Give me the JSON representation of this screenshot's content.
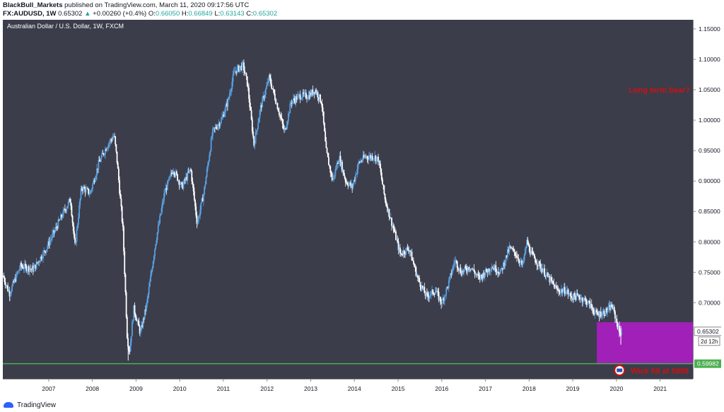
{
  "header": {
    "author": "BlackBull_Markets",
    "published": " published on TradingView.com, March 11, 2020 09:17:56 UTC",
    "symbol": "FX:AUDUSD, 1W",
    "last": "0.65302",
    "change": "+0.00260 (+0.4%)",
    "o_label": "O:",
    "o": "0.66050",
    "h_label": "H:",
    "h": "0.66849",
    "l_label": "L:",
    "l": "0.63143",
    "c_label": "C:",
    "c": "0.65302"
  },
  "colors": {
    "background": "#3b3d4b",
    "candle_up": "#5aa0e0",
    "candle_down": "#ffffff",
    "zone": "#a020b8",
    "support_line": "#4caf50",
    "annotation": "#d01010",
    "axis_text": "#131722"
  },
  "footer": {
    "brand": "TradingView"
  },
  "chart_data": {
    "type": "candlestick",
    "title": "Australian Dollar / U.S. Dollar, 1W, FXCM",
    "x_ticks": [
      "2007",
      "2008",
      "2009",
      "2010",
      "2011",
      "2012",
      "2013",
      "2014",
      "2015",
      "2016",
      "2017",
      "2018",
      "2019",
      "2020",
      "2021"
    ],
    "y_ticks": [
      "1.15000",
      "1.10000",
      "1.05000",
      "1.00000",
      "0.95000",
      "0.90000",
      "0.85000",
      "0.80000",
      "0.75000",
      "0.70000"
    ],
    "y_range": [
      0.575,
      1.165
    ],
    "x_range": [
      2006.0,
      2021.8
    ],
    "price_path": [
      [
        2006.0,
        0.745
      ],
      [
        2006.15,
        0.715
      ],
      [
        2006.4,
        0.76
      ],
      [
        2006.7,
        0.755
      ],
      [
        2007.0,
        0.79
      ],
      [
        2007.2,
        0.82
      ],
      [
        2007.4,
        0.85
      ],
      [
        2007.55,
        0.87
      ],
      [
        2007.65,
        0.79
      ],
      [
        2007.8,
        0.89
      ],
      [
        2008.0,
        0.88
      ],
      [
        2008.2,
        0.93
      ],
      [
        2008.4,
        0.96
      ],
      [
        2008.55,
        0.975
      ],
      [
        2008.62,
        0.93
      ],
      [
        2008.75,
        0.82
      ],
      [
        2008.85,
        0.64
      ],
      [
        2008.9,
        0.62
      ],
      [
        2009.0,
        0.69
      ],
      [
        2009.15,
        0.65
      ],
      [
        2009.3,
        0.7
      ],
      [
        2009.5,
        0.8
      ],
      [
        2009.7,
        0.88
      ],
      [
        2009.9,
        0.92
      ],
      [
        2010.1,
        0.89
      ],
      [
        2010.3,
        0.92
      ],
      [
        2010.45,
        0.83
      ],
      [
        2010.6,
        0.88
      ],
      [
        2010.8,
        0.98
      ],
      [
        2011.0,
        1.0
      ],
      [
        2011.15,
        1.03
      ],
      [
        2011.3,
        1.08
      ],
      [
        2011.5,
        1.09
      ],
      [
        2011.6,
        1.06
      ],
      [
        2011.75,
        0.96
      ],
      [
        2011.9,
        1.02
      ],
      [
        2012.1,
        1.07
      ],
      [
        2012.3,
        1.02
      ],
      [
        2012.45,
        0.98
      ],
      [
        2012.6,
        1.03
      ],
      [
        2012.8,
        1.04
      ],
      [
        2013.0,
        1.04
      ],
      [
        2013.15,
        1.05
      ],
      [
        2013.3,
        1.03
      ],
      [
        2013.4,
        0.95
      ],
      [
        2013.55,
        0.9
      ],
      [
        2013.7,
        0.94
      ],
      [
        2013.85,
        0.9
      ],
      [
        2014.0,
        0.89
      ],
      [
        2014.15,
        0.93
      ],
      [
        2014.3,
        0.94
      ],
      [
        2014.5,
        0.94
      ],
      [
        2014.6,
        0.935
      ],
      [
        2014.75,
        0.87
      ],
      [
        2014.95,
        0.82
      ],
      [
        2015.1,
        0.78
      ],
      [
        2015.3,
        0.79
      ],
      [
        2015.5,
        0.74
      ],
      [
        2015.7,
        0.71
      ],
      [
        2015.9,
        0.72
      ],
      [
        2016.05,
        0.7
      ],
      [
        2016.2,
        0.73
      ],
      [
        2016.35,
        0.77
      ],
      [
        2016.5,
        0.75
      ],
      [
        2016.7,
        0.76
      ],
      [
        2016.9,
        0.74
      ],
      [
        2017.05,
        0.75
      ],
      [
        2017.2,
        0.76
      ],
      [
        2017.4,
        0.75
      ],
      [
        2017.6,
        0.79
      ],
      [
        2017.75,
        0.78
      ],
      [
        2017.9,
        0.76
      ],
      [
        2018.0,
        0.8
      ],
      [
        2018.1,
        0.78
      ],
      [
        2018.3,
        0.76
      ],
      [
        2018.5,
        0.74
      ],
      [
        2018.7,
        0.72
      ],
      [
        2018.9,
        0.72
      ],
      [
        2019.0,
        0.71
      ],
      [
        2019.2,
        0.71
      ],
      [
        2019.4,
        0.7
      ],
      [
        2019.6,
        0.68
      ],
      [
        2019.8,
        0.685
      ],
      [
        2019.95,
        0.695
      ],
      [
        2020.05,
        0.67
      ],
      [
        2020.12,
        0.65
      ],
      [
        2020.18,
        0.653
      ]
    ],
    "last_price": "0.65302",
    "countdown": "2d 12h",
    "support_price": "0.59982",
    "support_value": 0.59982,
    "zone": {
      "x_start": 2019.6,
      "x_end": 2021.8,
      "y_low": 0.6,
      "y_high": 0.668
    },
    "annotations": [
      "Long term bear?",
      "Wick fill at 5998"
    ]
  }
}
